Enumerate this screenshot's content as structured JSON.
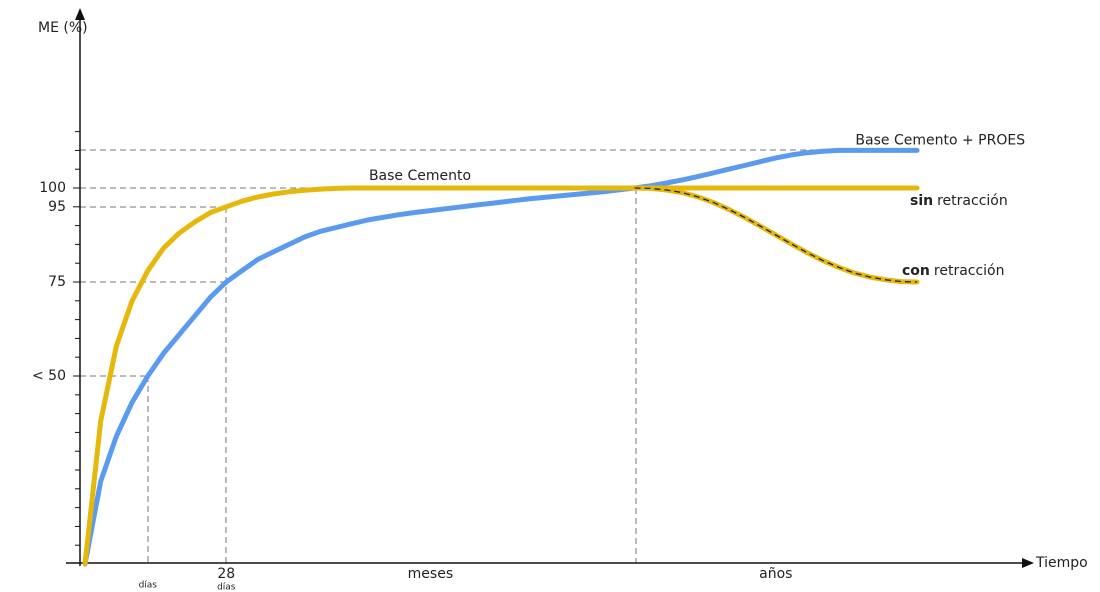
{
  "chart_data": {
    "type": "line",
    "y_label": "ME (%)",
    "x_label": "Tiempo",
    "ylim": [
      0,
      147
    ],
    "yticks": [
      {
        "value": 50,
        "label": "< 50"
      },
      75,
      95,
      100
    ],
    "yminor": [
      5,
      10,
      15,
      20,
      25,
      30,
      35,
      40,
      45,
      55,
      60,
      65,
      70,
      80,
      85,
      90,
      105,
      110,
      115
    ],
    "categories": [
      null,
      null,
      null,
      null,
      "días",
      null,
      null,
      null,
      null,
      "28",
      null,
      null,
      null,
      null,
      null,
      null,
      null,
      null,
      null,
      null,
      null,
      null,
      "meses",
      null,
      null,
      null,
      null,
      null,
      null,
      null,
      null,
      null,
      null,
      null,
      null,
      null,
      null,
      null,
      null,
      null,
      null,
      null,
      null,
      null,
      "años",
      null,
      null,
      null,
      null,
      null,
      null,
      null,
      null,
      null
    ],
    "day_unit": "días",
    "series": [
      {
        "name": "Base Cemento + PROES",
        "color": "#5b9bef",
        "values": [
          0,
          22,
          34,
          43,
          50,
          56,
          61,
          66,
          71,
          75,
          78,
          81,
          83,
          85,
          87,
          88.5,
          89.5,
          90.5,
          91.5,
          92.2,
          92.9,
          93.5,
          94,
          94.5,
          95,
          95.5,
          96,
          96.5,
          97,
          97.4,
          97.8,
          98.2,
          98.6,
          99,
          99.5,
          100,
          100.6,
          101.3,
          102.1,
          103,
          104,
          105,
          106,
          107,
          108,
          108.8,
          109.4,
          109.8,
          110,
          110,
          110,
          110,
          110,
          110
        ]
      },
      {
        "name": "Base Cemento",
        "color": "#e6b80c",
        "values": [
          0,
          38,
          58,
          70,
          78,
          84,
          88,
          91,
          93.5,
          95,
          96.5,
          97.6,
          98.4,
          99,
          99.4,
          99.7,
          99.9,
          100,
          100,
          100,
          100,
          100,
          100,
          100,
          100,
          100,
          100,
          100,
          100,
          100,
          100,
          100,
          100,
          100,
          100,
          100,
          100,
          100,
          100,
          100,
          100,
          100,
          100,
          100,
          100,
          100,
          100,
          100,
          100,
          100,
          100,
          100,
          100,
          100
        ]
      },
      {
        "color": "#e6b80c",
        "dashed": true,
        "values": [
          null,
          null,
          null,
          null,
          null,
          null,
          null,
          null,
          null,
          null,
          null,
          null,
          null,
          null,
          null,
          null,
          null,
          null,
          null,
          null,
          null,
          null,
          null,
          null,
          null,
          null,
          null,
          null,
          null,
          null,
          null,
          null,
          null,
          null,
          null,
          100,
          99.9,
          99.5,
          98.8,
          97.7,
          96.2,
          94.3,
          92.2,
          89.9,
          87.5,
          85.1,
          82.8,
          80.7,
          78.9,
          77.4,
          76.3,
          75.6,
          75.1,
          75
        ]
      }
    ],
    "annotations": [
      {
        "bold": "sin",
        "text": "retracción"
      },
      {
        "bold": "con",
        "text": "retracción"
      }
    ]
  }
}
